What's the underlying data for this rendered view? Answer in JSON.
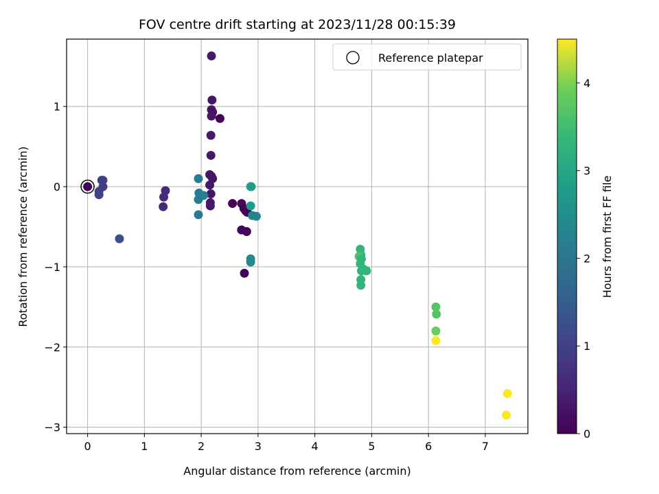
{
  "chart_data": {
    "type": "scatter",
    "title": "FOV centre drift starting at 2023/11/28 00:15:39",
    "xlabel": "Angular distance from reference (arcmin)",
    "ylabel": "Rotation from reference (arcmin)",
    "xlim": [
      -0.37,
      7.75
    ],
    "ylim": [
      -3.08,
      1.84
    ],
    "xticks": [
      0,
      1,
      2,
      3,
      4,
      5,
      6,
      7
    ],
    "yticks": [
      -3,
      -2,
      -1,
      0,
      1
    ],
    "xtick_labels": [
      "0",
      "1",
      "2",
      "3",
      "4",
      "5",
      "6",
      "7"
    ],
    "ytick_labels": [
      "−3",
      "−2",
      "−1",
      "0",
      "1"
    ],
    "grid": true,
    "legend": {
      "position": "top-right",
      "entries": [
        "Reference platepar"
      ]
    },
    "colorbar": {
      "label": "Hours from first FF file",
      "colormap": "viridis",
      "range": [
        0,
        4.5
      ],
      "ticks": [
        0,
        1,
        2,
        3,
        4
      ],
      "tick_labels": [
        "0",
        "1",
        "2",
        "3",
        "4"
      ]
    },
    "reference_point": {
      "x": 0,
      "y": 0
    },
    "points": [
      {
        "x": 0.0,
        "y": 0.0,
        "c": 0.0
      },
      {
        "x": 2.18,
        "y": 1.63,
        "c": 0.35
      },
      {
        "x": 2.19,
        "y": 1.08,
        "c": 0.3
      },
      {
        "x": 2.18,
        "y": 0.96,
        "c": 0.3
      },
      {
        "x": 2.2,
        "y": 0.93,
        "c": 0.25
      },
      {
        "x": 2.18,
        "y": 0.88,
        "c": 0.3
      },
      {
        "x": 2.33,
        "y": 0.85,
        "c": 0.05
      },
      {
        "x": 2.17,
        "y": 0.64,
        "c": 0.35
      },
      {
        "x": 2.17,
        "y": 0.39,
        "c": 0.35
      },
      {
        "x": 2.15,
        "y": 0.15,
        "c": 0.35
      },
      {
        "x": 2.18,
        "y": 0.13,
        "c": 0.3
      },
      {
        "x": 2.2,
        "y": 0.1,
        "c": 0.3
      },
      {
        "x": 2.15,
        "y": 0.02,
        "c": 0.3
      },
      {
        "x": 2.17,
        "y": -0.09,
        "c": 0.3
      },
      {
        "x": 2.16,
        "y": -0.2,
        "c": 0.3
      },
      {
        "x": 2.16,
        "y": -0.24,
        "c": 0.3
      },
      {
        "x": 0.25,
        "y": 0.08,
        "c": 0.95
      },
      {
        "x": 0.27,
        "y": 0.08,
        "c": 0.95
      },
      {
        "x": 0.27,
        "y": 0.0,
        "c": 0.95
      },
      {
        "x": 0.2,
        "y": -0.06,
        "c": 1.0
      },
      {
        "x": 0.2,
        "y": -0.1,
        "c": 1.0
      },
      {
        "x": 0.56,
        "y": -0.65,
        "c": 1.25
      },
      {
        "x": 1.37,
        "y": -0.05,
        "c": 0.6
      },
      {
        "x": 1.34,
        "y": -0.13,
        "c": 0.6
      },
      {
        "x": 1.33,
        "y": -0.25,
        "c": 0.6
      },
      {
        "x": 1.95,
        "y": 0.1,
        "c": 2.1
      },
      {
        "x": 1.96,
        "y": -0.08,
        "c": 2.1
      },
      {
        "x": 1.98,
        "y": -0.12,
        "c": 2.1
      },
      {
        "x": 2.04,
        "y": -0.11,
        "c": 2.2
      },
      {
        "x": 1.95,
        "y": -0.16,
        "c": 2.1
      },
      {
        "x": 1.95,
        "y": -0.35,
        "c": 2.05
      },
      {
        "x": 2.55,
        "y": -0.21,
        "c": 0.05
      },
      {
        "x": 2.71,
        "y": -0.21,
        "c": 0.05
      },
      {
        "x": 2.75,
        "y": -0.27,
        "c": 0.05
      },
      {
        "x": 2.78,
        "y": -0.3,
        "c": 0.05
      },
      {
        "x": 2.81,
        "y": -0.32,
        "c": 0.05
      },
      {
        "x": 2.71,
        "y": -0.54,
        "c": 0.05
      },
      {
        "x": 2.8,
        "y": -0.56,
        "c": 0.05
      },
      {
        "x": 2.76,
        "y": -1.08,
        "c": 0.05
      },
      {
        "x": 2.87,
        "y": 0.0,
        "c": 2.8
      },
      {
        "x": 2.88,
        "y": 0.0,
        "c": 2.8
      },
      {
        "x": 2.87,
        "y": -0.24,
        "c": 2.75
      },
      {
        "x": 2.9,
        "y": -0.36,
        "c": 2.3
      },
      {
        "x": 2.97,
        "y": -0.37,
        "c": 2.3
      },
      {
        "x": 2.87,
        "y": -0.9,
        "c": 2.4
      },
      {
        "x": 2.87,
        "y": -0.94,
        "c": 2.4
      },
      {
        "x": 4.8,
        "y": -0.78,
        "c": 3.3
      },
      {
        "x": 4.81,
        "y": -0.85,
        "c": 3.3
      },
      {
        "x": 4.78,
        "y": -0.87,
        "c": 3.6
      },
      {
        "x": 4.82,
        "y": -0.9,
        "c": 3.3
      },
      {
        "x": 4.8,
        "y": -0.96,
        "c": 3.3
      },
      {
        "x": 4.86,
        "y": -1.03,
        "c": 3.3
      },
      {
        "x": 4.91,
        "y": -1.05,
        "c": 3.3
      },
      {
        "x": 4.82,
        "y": -1.05,
        "c": 3.3
      },
      {
        "x": 4.81,
        "y": -1.16,
        "c": 3.3
      },
      {
        "x": 4.81,
        "y": -1.23,
        "c": 3.3
      },
      {
        "x": 6.13,
        "y": -1.5,
        "c": 3.7
      },
      {
        "x": 6.14,
        "y": -1.59,
        "c": 3.7
      },
      {
        "x": 6.13,
        "y": -1.8,
        "c": 3.9
      },
      {
        "x": 6.13,
        "y": -1.92,
        "c": 4.5
      },
      {
        "x": 7.39,
        "y": -2.58,
        "c": 4.5
      },
      {
        "x": 7.37,
        "y": -2.85,
        "c": 4.5
      }
    ]
  }
}
